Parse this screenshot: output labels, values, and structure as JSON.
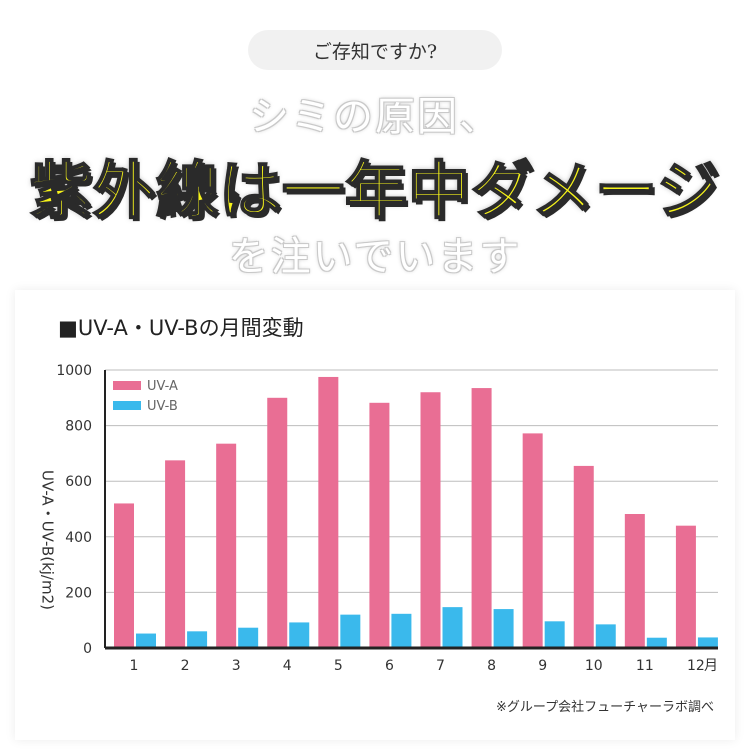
{
  "intro_pill": "ご存知ですか?",
  "headline": {
    "top": "シミの原因、",
    "main": "紫外線は一年中ダメージ",
    "bottom": "を注いでいます"
  },
  "source_note": "※グループ会社フューチャーラボ調べ",
  "colors": {
    "uva": "#e96e94",
    "uvb": "#3ab9ec",
    "headline_yellow": "#f7f41a"
  },
  "chart_data": {
    "type": "bar",
    "title": "■UV-A・UV-Bの月間変動",
    "ylabel": "UV-A・UV-B(kj/m2)",
    "x_unit": "月",
    "categories": [
      "1",
      "2",
      "3",
      "4",
      "5",
      "6",
      "7",
      "8",
      "9",
      "10",
      "11",
      "12"
    ],
    "ylim": [
      0,
      1000
    ],
    "yticks": [
      0,
      200,
      400,
      600,
      800,
      1000
    ],
    "grid": true,
    "legend_position": "top-left",
    "series": [
      {
        "name": "UV-A",
        "values": [
          520,
          675,
          735,
          900,
          975,
          882,
          920,
          935,
          772,
          655,
          482,
          440
        ]
      },
      {
        "name": "UV-B",
        "values": [
          52,
          60,
          73,
          92,
          120,
          123,
          147,
          140,
          96,
          85,
          37,
          38
        ]
      }
    ]
  }
}
